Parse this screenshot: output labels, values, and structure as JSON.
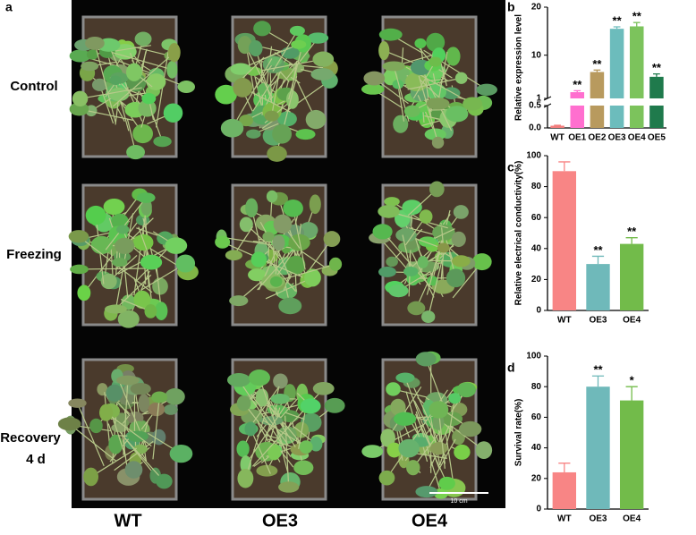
{
  "photo_panel": {
    "label": "a",
    "row_labels": [
      "Control",
      "Freezing",
      "Recovery",
      "4 d"
    ],
    "column_labels": [
      "WT",
      "OE3",
      "OE4"
    ],
    "scale_bar": "10 cm"
  },
  "chart_data": [
    {
      "type": "bar",
      "label": "b",
      "y_label": "Relative expression level",
      "categories": [
        "WT",
        "OE1",
        "OE2",
        "OE3",
        "OE4",
        "OE5"
      ],
      "values": [
        0.05,
        2.3,
        6.5,
        15.5,
        16,
        5.5
      ],
      "errors": [
        0.01,
        0.3,
        0.4,
        0.4,
        0.8,
        0.6
      ],
      "colors": [
        "#f27d7d",
        "#ff6fcf",
        "#b89a5e",
        "#6cbcbc",
        "#7cc35c",
        "#1f7a4c"
      ],
      "annotations": [
        null,
        "**",
        "**",
        "**",
        "**",
        "**"
      ],
      "ylim": [
        0,
        20
      ],
      "y_break": [
        0.5,
        1
      ],
      "yticks": [
        {
          "value": 0,
          "label": "0.0"
        },
        0.5,
        1,
        10,
        20
      ]
    },
    {
      "type": "bar",
      "label": "c",
      "y_label": "Relative electrical conductivity(%)",
      "categories": [
        "WT",
        "OE3",
        "OE4"
      ],
      "values": [
        90,
        30,
        43
      ],
      "errors": [
        6,
        5,
        4
      ],
      "colors": [
        "#f88585",
        "#6fb9ba",
        "#72bb4a"
      ],
      "annotations": [
        null,
        "**",
        "**"
      ],
      "ylim": [
        0,
        100
      ],
      "yticks": [
        0,
        20,
        40,
        60,
        80,
        100
      ]
    },
    {
      "type": "bar",
      "label": "d",
      "y_label": "Survival rate(%)",
      "categories": [
        "WT",
        "OE3",
        "OE4"
      ],
      "values": [
        24,
        80,
        71
      ],
      "errors": [
        6,
        7,
        9
      ],
      "colors": [
        "#f88585",
        "#6fb9ba",
        "#72bb4a"
      ],
      "annotations": [
        null,
        "**",
        "*"
      ],
      "ylim": [
        0,
        100
      ],
      "yticks": [
        0,
        20,
        40,
        60,
        80,
        100
      ]
    }
  ]
}
